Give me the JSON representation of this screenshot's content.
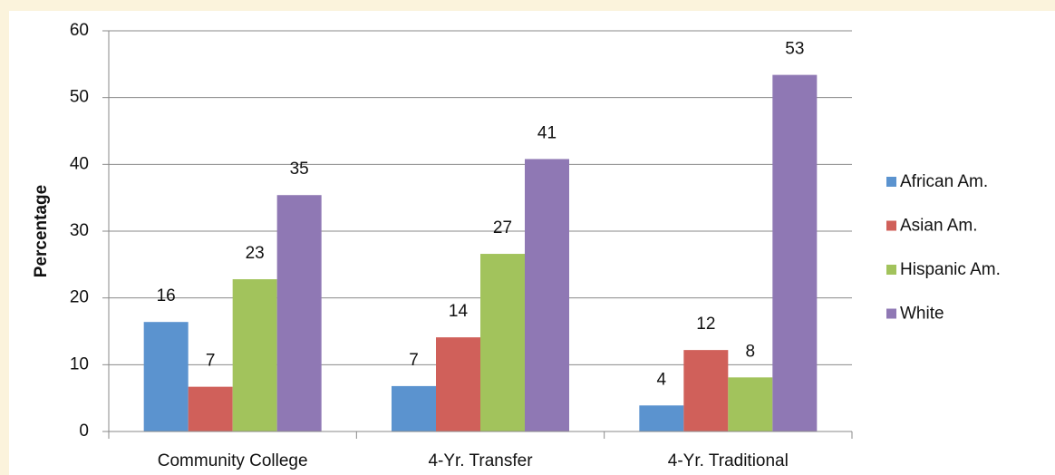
{
  "chart_data": {
    "type": "bar",
    "y_label": "Percentage",
    "categories": [
      "Community College",
      "4-Yr. Transfer",
      "4-Yr. Traditional"
    ],
    "series": [
      {
        "name": "African Am.",
        "color": "#5b93cf",
        "values": [
          16.4,
          6.8,
          3.9
        ],
        "value_labels": [
          "16",
          "7",
          "4"
        ]
      },
      {
        "name": "Asian Am.",
        "color": "#d0605a",
        "values": [
          6.7,
          14.1,
          12.2
        ],
        "value_labels": [
          "7",
          "14",
          "12"
        ]
      },
      {
        "name": "Hispanic Am.",
        "color": "#a2c35c",
        "values": [
          22.8,
          26.6,
          8.1
        ],
        "value_labels": [
          "23",
          "27",
          "8"
        ]
      },
      {
        "name": "White",
        "color": "#8f78b4",
        "values": [
          35.4,
          40.8,
          53.4
        ],
        "value_labels": [
          "35",
          "41",
          "53"
        ]
      }
    ],
    "ylim": [
      0,
      60
    ],
    "yticks": [
      0,
      10,
      20,
      30,
      40,
      50,
      60
    ],
    "grid": true,
    "legend": "right"
  }
}
